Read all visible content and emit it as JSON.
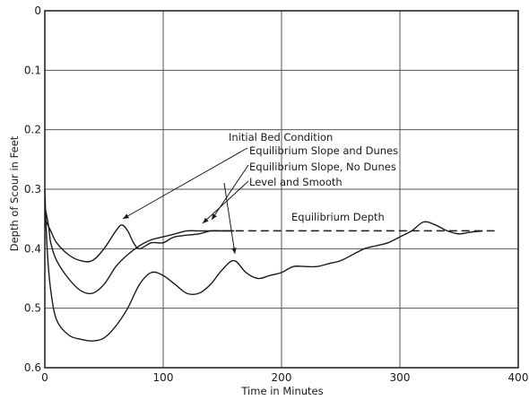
{
  "chart_data": {
    "type": "line",
    "xlabel": "Time in Minutes",
    "ylabel": "Depth of Scour in Feet",
    "xlim": [
      0,
      400
    ],
    "ylim": [
      0,
      0.6
    ],
    "y_inverted": true,
    "grid": true,
    "x_ticks": [
      {
        "value": 0,
        "label": "0"
      },
      {
        "value": 100,
        "label": "100"
      },
      {
        "value": 200,
        "label": "200"
      },
      {
        "value": 300,
        "label": "300"
      },
      {
        "value": 400,
        "label": "400"
      }
    ],
    "y_ticks": [
      {
        "value": 0,
        "label": "0"
      },
      {
        "value": 0.1,
        "label": "0.1"
      },
      {
        "value": 0.2,
        "label": "0.2"
      },
      {
        "value": 0.3,
        "label": "0.3"
      },
      {
        "value": 0.4,
        "label": "0.4"
      },
      {
        "value": 0.5,
        "label": "0.5"
      },
      {
        "value": 0.6,
        "label": "0.6"
      }
    ],
    "legend_heading": "Initial Bed Condition",
    "series": [
      {
        "name": "Equilibrium Slope and Dunes",
        "x": [
          0,
          5,
          10,
          20,
          30,
          40,
          50,
          60,
          65,
          70,
          75,
          80,
          90,
          100,
          110,
          130,
          140,
          150,
          160
        ],
        "y": [
          0.35,
          0.37,
          0.39,
          0.41,
          0.42,
          0.42,
          0.4,
          0.37,
          0.36,
          0.37,
          0.39,
          0.4,
          0.39,
          0.39,
          0.38,
          0.375,
          0.37,
          0.37,
          0.37
        ]
      },
      {
        "name": "Equilibrium Slope, No Dunes",
        "x": [
          0,
          3,
          5,
          10,
          20,
          30,
          40,
          50,
          60,
          70,
          80,
          90,
          100,
          110,
          120,
          130,
          140,
          150,
          160
        ],
        "y": [
          0.33,
          0.36,
          0.39,
          0.42,
          0.45,
          0.47,
          0.475,
          0.46,
          0.43,
          0.41,
          0.395,
          0.385,
          0.38,
          0.375,
          0.37,
          0.37,
          0.37,
          0.37,
          0.37
        ]
      },
      {
        "name": "Level and Smooth",
        "x": [
          0,
          2,
          5,
          10,
          20,
          30,
          40,
          50,
          60,
          70,
          80,
          90,
          100,
          110,
          120,
          130,
          140,
          150,
          160,
          170,
          180,
          190,
          200,
          210,
          220,
          230,
          240,
          250,
          260,
          270,
          280,
          290,
          300,
          310,
          320,
          330,
          340,
          350,
          360,
          370
        ],
        "y": [
          0.3,
          0.4,
          0.47,
          0.52,
          0.545,
          0.552,
          0.555,
          0.55,
          0.53,
          0.5,
          0.46,
          0.44,
          0.445,
          0.46,
          0.475,
          0.475,
          0.46,
          0.435,
          0.42,
          0.44,
          0.45,
          0.445,
          0.44,
          0.43,
          0.43,
          0.43,
          0.425,
          0.42,
          0.41,
          0.4,
          0.395,
          0.39,
          0.38,
          0.37,
          0.355,
          0.36,
          0.37,
          0.375,
          0.372,
          0.37
        ]
      }
    ],
    "reference_line": {
      "label": "Equilibrium Depth",
      "y": 0.37,
      "x_start": 140,
      "x_end": 380,
      "style": "dashed"
    }
  }
}
